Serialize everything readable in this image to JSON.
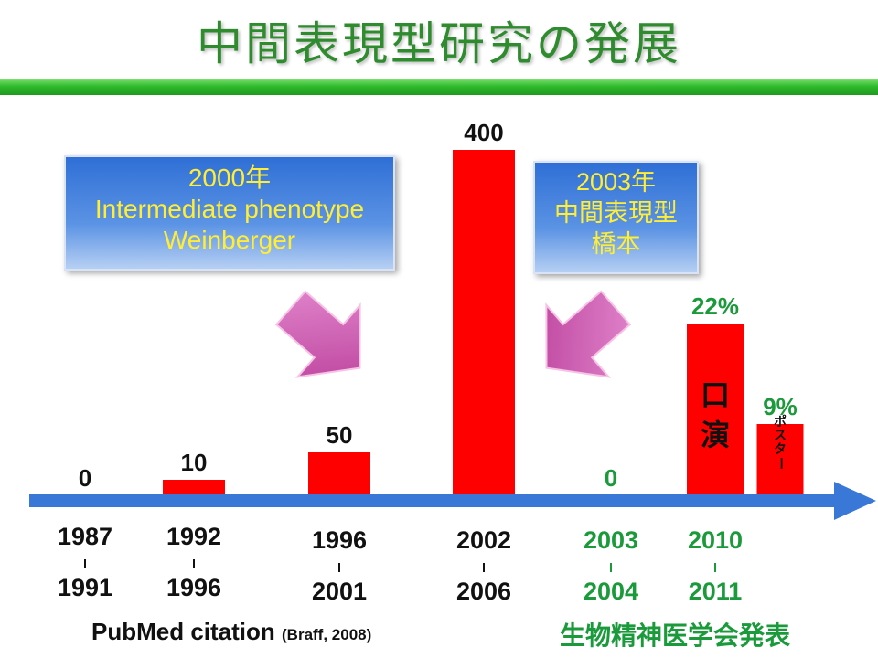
{
  "title": "中間表現型研究の発展",
  "callouts": [
    {
      "lines": [
        "2000年",
        "Intermediate phenotype",
        "Weinberger"
      ]
    },
    {
      "lines": [
        "2003年",
        "中間表現型",
        "橋本"
      ]
    }
  ],
  "footer": {
    "source_main": "PubMed citation",
    "source_ref": "(Braff, 2008)",
    "japan_label": "生物精神医学会発表"
  },
  "colors": {
    "bar": "#ff0000",
    "arrow": "#3a78d8",
    "pubmed_text": "#111111",
    "japan_text": "#1a9a3a",
    "callout_text": "#ffee33",
    "pointer": "#cc4ca8"
  },
  "chart_data": {
    "type": "bar",
    "categories": [
      {
        "start": "1987",
        "end": "1991"
      },
      {
        "start": "1992",
        "end": "1996"
      },
      {
        "start": "1996",
        "end": "2001"
      },
      {
        "start": "2002",
        "end": "2006"
      },
      {
        "start": "2003",
        "end": "2004"
      },
      {
        "start": "2010",
        "end": "2011"
      },
      {
        "start": "2010",
        "end": "2011"
      }
    ],
    "series": [
      {
        "name": "PubMed citation",
        "values": [
          0,
          10,
          50,
          400,
          null,
          null,
          null
        ],
        "labels": [
          "0",
          "10",
          "50",
          "400",
          "",
          "",
          ""
        ]
      },
      {
        "name": "生物精神医学会発表",
        "values": [
          null,
          null,
          null,
          null,
          0,
          22,
          9
        ],
        "labels": [
          "",
          "",
          "",
          "",
          "0",
          "22%",
          "9%"
        ],
        "bar_text": [
          "",
          "",
          "",
          "",
          "",
          "口演",
          "ポスター"
        ]
      }
    ]
  }
}
